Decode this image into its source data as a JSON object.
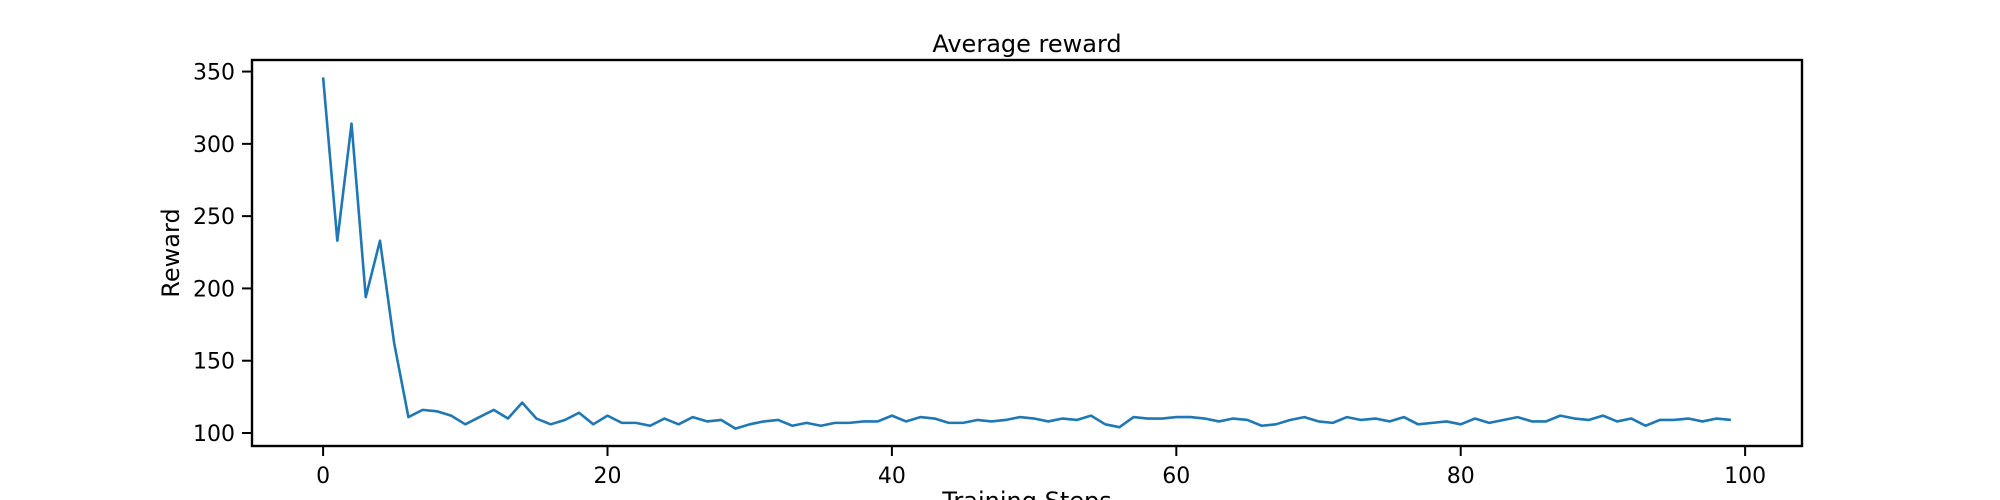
{
  "chart_data": {
    "type": "line",
    "title": "Average reward",
    "xlabel": "Training Steps",
    "ylabel": "Reward",
    "xlim": [
      -5,
      104
    ],
    "ylim": [
      91,
      358
    ],
    "xticks": [
      0,
      20,
      40,
      60,
      80,
      100
    ],
    "yticks": [
      100,
      150,
      200,
      250,
      300,
      350
    ],
    "grid": false,
    "line_color": "#1f77b4",
    "series": [
      {
        "x": [
          0,
          1,
          2,
          3,
          4,
          5,
          6,
          7,
          8,
          9,
          10,
          11,
          12,
          13,
          14,
          15,
          16,
          17,
          18,
          19,
          20,
          21,
          22,
          23,
          24,
          25,
          26,
          27,
          28,
          29,
          30,
          31,
          32,
          33,
          34,
          35,
          36,
          37,
          38,
          39,
          40,
          41,
          42,
          43,
          44,
          45,
          46,
          47,
          48,
          49,
          50,
          51,
          52,
          53,
          54,
          55,
          56,
          57,
          58,
          59,
          60,
          61,
          62,
          63,
          64,
          65,
          66,
          67,
          68,
          69,
          70,
          71,
          72,
          73,
          74,
          75,
          76,
          77,
          78,
          79,
          80,
          81,
          82,
          83,
          84,
          85,
          86,
          87,
          88,
          89,
          90,
          91,
          92,
          93,
          94,
          95,
          96,
          97,
          98,
          99
        ],
        "y": [
          346,
          233,
          314,
          194,
          233,
          162,
          111,
          116,
          115,
          112,
          106,
          111,
          116,
          110,
          121,
          110,
          106,
          109,
          114,
          106,
          112,
          107,
          107,
          105,
          110,
          106,
          111,
          108,
          109,
          103,
          106,
          108,
          109,
          105,
          107,
          105,
          107,
          107,
          108,
          108,
          112,
          108,
          111,
          110,
          107,
          107,
          109,
          108,
          109,
          111,
          110,
          108,
          110,
          109,
          112,
          106,
          104,
          111,
          110,
          110,
          111,
          111,
          110,
          108,
          110,
          109,
          105,
          106,
          109,
          111,
          108,
          107,
          111,
          109,
          110,
          108,
          111,
          106,
          107,
          108,
          106,
          110,
          107,
          109,
          111,
          108,
          108,
          112,
          110,
          109,
          112,
          108,
          110,
          105,
          109,
          109,
          110,
          108,
          110,
          109
        ]
      }
    ]
  }
}
